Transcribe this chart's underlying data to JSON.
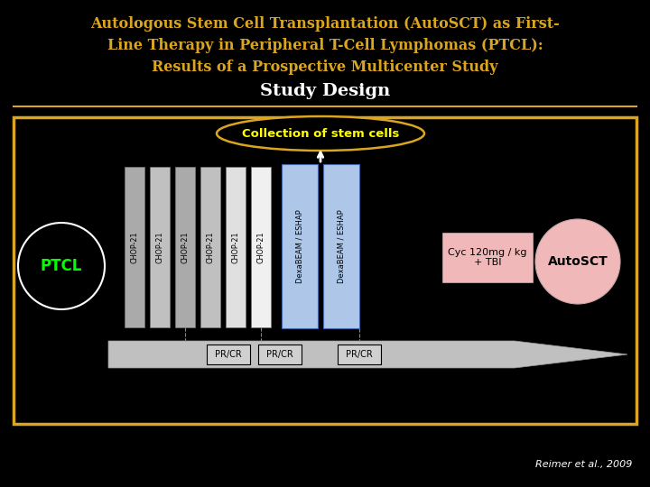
{
  "title_line1": "Autologous Stem Cell Transplantation (AutoSCT) as First-",
  "title_line2": "Line Therapy in Peripheral T-Cell Lymphomas (PTCL):",
  "title_line3": "Results of a Prospective Multicenter Study",
  "subtitle": "Study Design",
  "bg_color": "#000000",
  "title_color": "#DAA520",
  "subtitle_color": "#ffffff",
  "gold_color": "#DAA520",
  "chop_labels": [
    "CHOP-21",
    "CHOP-21",
    "CHOP-21",
    "CHOP-21",
    "CHOP-21",
    "CHOP-21"
  ],
  "dexa_labels": [
    "DexaBEAM / ESHAP",
    "DexaBEAM / ESHAP"
  ],
  "ptcl_color": "#00ff00",
  "dexa_color": "#aec6e8",
  "chop_colors": [
    "#aaaaaa",
    "#c0c0c0",
    "#aaaaaa",
    "#c0c0c0",
    "#e0e0e0",
    "#f0f0f0"
  ],
  "collection_text": "Collection of stem cells",
  "cyc_text": "Cyc 120mg / kg\n+ TBI",
  "cyc_bg": "#f0b8b8",
  "autosct_text": "AutoSCT",
  "autosct_bg": "#f0b8b8",
  "reimer_text": "Reimer et al., 2009",
  "footer_color": "#ffffff"
}
